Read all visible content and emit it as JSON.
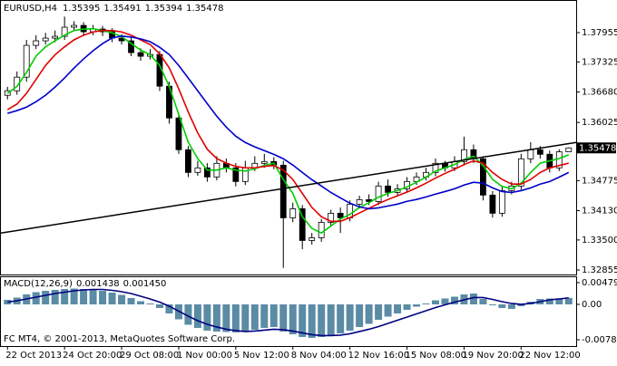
{
  "chart_data": {
    "type": "candlestick",
    "title": "EURUSD,H4",
    "categories": [
      "22 Oct 2013",
      null,
      null,
      null,
      null,
      null,
      "24 Oct 20:00",
      null,
      null,
      null,
      null,
      null,
      "29 Oct 08:00",
      null,
      null,
      null,
      null,
      null,
      "1 Nov 00:00",
      null,
      null,
      null,
      null,
      null,
      "5 Nov 12:00",
      null,
      null,
      null,
      null,
      null,
      "8 Nov 04:00",
      null,
      null,
      null,
      null,
      null,
      "12 Nov 16:00",
      null,
      null,
      null,
      null,
      null,
      "15 Nov 08:00",
      null,
      null,
      null,
      null,
      null,
      "19 Nov 20:00",
      null,
      null,
      null,
      null,
      null,
      "22 Nov 12:00",
      null,
      null,
      null,
      null,
      null
    ],
    "open": [
      1.36608,
      1.36706,
      1.36998,
      1.37681,
      1.37779,
      1.37837,
      1.37876,
      1.38071,
      1.3811,
      1.37974,
      1.38032,
      1.37974,
      1.37837,
      1.37779,
      1.37525,
      1.37447,
      1.37486,
      1.36804,
      1.36121,
      1.35439,
      1.34951,
      1.35049,
      1.34854,
      1.35146,
      1.35049,
      1.34756,
      1.35049,
      1.35146,
      1.35185,
      1.35107,
      1.33976,
      1.34171,
      1.33489,
      1.33547,
      1.33879,
      1.34074,
      1.33976,
      1.34269,
      1.34366,
      1.34327,
      1.34659,
      1.34522,
      1.346,
      1.34756,
      1.34854,
      1.34951,
      1.35146,
      1.35049,
      1.35185,
      1.35439,
      1.35244,
      1.34464,
      1.34074,
      1.34561,
      1.34659,
      1.35244,
      1.35439,
      1.35341,
      1.35049,
      1.35395
    ],
    "high": [
      1.3679,
      1.3712,
      1.378,
      1.379,
      1.3795,
      1.38,
      1.383,
      1.382,
      1.3818,
      1.3812,
      1.381,
      1.3805,
      1.3792,
      1.3785,
      1.3762,
      1.376,
      1.3756,
      1.369,
      1.362,
      1.3552,
      1.352,
      1.3515,
      1.353,
      1.3525,
      1.3515,
      1.352,
      1.353,
      1.3535,
      1.3528,
      1.352,
      1.343,
      1.3425,
      1.3365,
      1.3395,
      1.3415,
      1.342,
      1.3435,
      1.3445,
      1.3448,
      1.3475,
      1.348,
      1.347,
      1.3485,
      1.3495,
      1.3505,
      1.3525,
      1.352,
      1.353,
      1.3572,
      1.3555,
      1.353,
      1.3455,
      1.3465,
      1.3475,
      1.3535,
      1.356,
      1.3552,
      1.3542,
      1.3545,
      1.35491
    ],
    "low": [
      1.3652,
      1.3662,
      1.369,
      1.376,
      1.377,
      1.3775,
      1.378,
      1.3799,
      1.3788,
      1.379,
      1.3788,
      1.3775,
      1.377,
      1.3745,
      1.3735,
      1.3738,
      1.367,
      1.36,
      1.3535,
      1.3485,
      1.3488,
      1.3475,
      1.3478,
      1.3495,
      1.3465,
      1.3468,
      1.3498,
      1.3505,
      1.3502,
      1.329,
      1.3388,
      1.333,
      1.334,
      1.3346,
      1.338,
      1.3365,
      1.339,
      1.3418,
      1.3425,
      1.3425,
      1.3443,
      1.3445,
      1.3452,
      1.3468,
      1.3478,
      1.3487,
      1.3497,
      1.3498,
      1.351,
      1.3515,
      1.3435,
      1.3398,
      1.34,
      1.3448,
      1.3458,
      1.3515,
      1.3525,
      1.3495,
      1.3498,
      1.35394
    ],
    "close": [
      1.36706,
      1.36998,
      1.37681,
      1.37779,
      1.37837,
      1.37876,
      1.38071,
      1.3811,
      1.37974,
      1.38032,
      1.37974,
      1.37837,
      1.37779,
      1.37525,
      1.37447,
      1.37486,
      1.36804,
      1.36121,
      1.35439,
      1.34951,
      1.35049,
      1.34854,
      1.35146,
      1.35049,
      1.34756,
      1.35049,
      1.35146,
      1.35185,
      1.35107,
      1.33976,
      1.34171,
      1.33489,
      1.33547,
      1.33879,
      1.34074,
      1.33976,
      1.34269,
      1.34366,
      1.34327,
      1.34659,
      1.34522,
      1.346,
      1.34756,
      1.34854,
      1.34951,
      1.35146,
      1.35049,
      1.35185,
      1.35439,
      1.35244,
      1.34464,
      1.34074,
      1.34561,
      1.34659,
      1.35244,
      1.35439,
      1.35341,
      1.35049,
      1.35395,
      1.35478
    ],
    "ma": [
      {
        "color": "#00cc00",
        "values": [
          1.3665,
          1.368,
          1.371,
          1.3745,
          1.3765,
          1.3778,
          1.379,
          1.38,
          1.3803,
          1.3804,
          1.38,
          1.3795,
          1.3787,
          1.3772,
          1.3758,
          1.3748,
          1.3725,
          1.368,
          1.362,
          1.356,
          1.3525,
          1.35,
          1.35,
          1.3505,
          1.35,
          1.3498,
          1.3503,
          1.351,
          1.3515,
          1.348,
          1.345,
          1.34,
          1.3375,
          1.3365,
          1.338,
          1.3395,
          1.3405,
          1.342,
          1.343,
          1.3442,
          1.345,
          1.3456,
          1.3464,
          1.3474,
          1.3485,
          1.3498,
          1.3505,
          1.3512,
          1.3523,
          1.353,
          1.351,
          1.348,
          1.3465,
          1.346,
          1.3472,
          1.3495,
          1.3515,
          1.352,
          1.3525,
          1.3533
        ]
      },
      {
        "color": "#e00000",
        "values": [
          1.363,
          1.3642,
          1.3665,
          1.3695,
          1.3725,
          1.3748,
          1.3765,
          1.378,
          1.379,
          1.3797,
          1.38,
          1.38,
          1.3797,
          1.379,
          1.378,
          1.377,
          1.375,
          1.372,
          1.3675,
          1.3625,
          1.358,
          1.3545,
          1.3525,
          1.3515,
          1.3508,
          1.3505,
          1.3505,
          1.3508,
          1.351,
          1.35,
          1.348,
          1.345,
          1.342,
          1.34,
          1.339,
          1.339,
          1.3398,
          1.3408,
          1.3418,
          1.3428,
          1.3437,
          1.3445,
          1.3453,
          1.3462,
          1.3472,
          1.3483,
          1.3493,
          1.3502,
          1.3512,
          1.352,
          1.3515,
          1.3495,
          1.348,
          1.347,
          1.347,
          1.348,
          1.3495,
          1.3505,
          1.351,
          1.3515
        ]
      },
      {
        "color": "#0000c8",
        "values": [
          1.3622,
          1.3628,
          1.36355,
          1.3647,
          1.3661,
          1.36785,
          1.3698,
          1.37195,
          1.3739,
          1.37565,
          1.3772,
          1.3784,
          1.3788,
          1.3786,
          1.3782,
          1.3776,
          1.3764,
          1.37485,
          1.3725,
          1.3698,
          1.36705,
          1.3643,
          1.3616,
          1.35925,
          1.3573,
          1.35595,
          1.355,
          1.3542,
          1.3534,
          1.35245,
          1.3511,
          1.3495,
          1.34795,
          1.3466,
          1.3452,
          1.34405,
          1.3429,
          1.3421,
          1.3417,
          1.3419,
          1.3423,
          1.3427,
          1.3433,
          1.3437,
          1.34425,
          1.34485,
          1.3454,
          1.346,
          1.3468,
          1.3474,
          1.3472,
          1.3462,
          1.3454,
          1.3452,
          1.3456,
          1.3462,
          1.347,
          1.34756,
          1.3485,
          1.3495
        ]
      }
    ],
    "trendline": {
      "color": "#000000",
      "values": [
        1.33645,
        1.35595
      ]
    },
    "bull_color": "#ffffff",
    "bear_color": "#000000",
    "ylim": [
      1.32758,
      1.38656
    ],
    "yticks": [
      1.37955,
      1.37325,
      {
        "value": 1.3668,
        "label": "1.36680"
      },
      1.36025,
      1.34775,
      {
        "value": 1.3413,
        "label": "1.34130"
      },
      {
        "value": 1.335,
        "label": "1.33500"
      },
      1.32855
    ],
    "indicator": {
      "title": "MACD(12,26,9)",
      "histogram": {
        "color": "#5b8ba5",
        "values": [
          0.001,
          0.0015,
          0.0022,
          0.0027,
          0.003,
          0.0032,
          0.0034,
          0.0035,
          0.0034,
          0.0033,
          0.003,
          0.0026,
          0.0021,
          0.0014,
          0.0007,
          0.0002,
          -0.0008,
          -0.002,
          -0.0033,
          -0.0045,
          -0.0052,
          -0.0058,
          -0.006,
          -0.0061,
          -0.0062,
          -0.006,
          -0.0056,
          -0.0052,
          -0.005,
          -0.006,
          -0.0066,
          -0.0072,
          -0.0074,
          -0.0072,
          -0.0068,
          -0.0064,
          -0.0058,
          -0.005,
          -0.0043,
          -0.0034,
          -0.0027,
          -0.002,
          -0.0012,
          -0.0005,
          0.0002,
          0.0009,
          0.0013,
          0.0017,
          0.0022,
          0.0024,
          0.0012,
          -0.0002,
          -0.0008,
          -0.001,
          -0.0004,
          0.0006,
          0.0012,
          0.0013,
          0.0013,
          0.001438
        ]
      },
      "signal": {
        "color": "#000080",
        "values": [
          0.0005,
          0.0008,
          0.0012,
          0.0016,
          0.002,
          0.0024,
          0.0027,
          0.003,
          0.0032,
          0.0033,
          0.0033,
          0.0031,
          0.0028,
          0.0024,
          0.0018,
          0.0012,
          0.0005,
          -0.0004,
          -0.0015,
          -0.0026,
          -0.0036,
          -0.0044,
          -0.005,
          -0.0055,
          -0.0058,
          -0.006,
          -0.0059,
          -0.0057,
          -0.0055,
          -0.0056,
          -0.0059,
          -0.0063,
          -0.0067,
          -0.0069,
          -0.0069,
          -0.0068,
          -0.0065,
          -0.006,
          -0.0055,
          -0.0049,
          -0.0042,
          -0.0035,
          -0.0028,
          -0.0021,
          -0.0014,
          -0.0007,
          -0.0001,
          0.0005,
          0.001,
          0.0015,
          0.0015,
          0.0011,
          0.0006,
          0.0002,
          0.0,
          0.0002,
          0.0006,
          0.001,
          0.0012,
          0.00145
        ],
        "value_labels": [
          null,
          null,
          null,
          null,
          null,
          null,
          null,
          null,
          null,
          null,
          null,
          null,
          null,
          null,
          null,
          null,
          null,
          null,
          null,
          null,
          null,
          null,
          null,
          null,
          null,
          null,
          null,
          null,
          null,
          null,
          null,
          null,
          null,
          null,
          null,
          null,
          null,
          null,
          null,
          null,
          null,
          null,
          null,
          null,
          null,
          null,
          null,
          null,
          null,
          null,
          null,
          null,
          null,
          null,
          null,
          null,
          null,
          null,
          null,
          "0.001450"
        ]
      },
      "ylim": [
        -0.00921,
        0.0062
      ],
      "yticks": [
        0.004798,
        {
          "value": 0,
          "label": "0.00"
        },
        -0.007806
      ]
    },
    "footer": "FC MT4, © 2001-2013, MetaQuotes Software Corp."
  }
}
